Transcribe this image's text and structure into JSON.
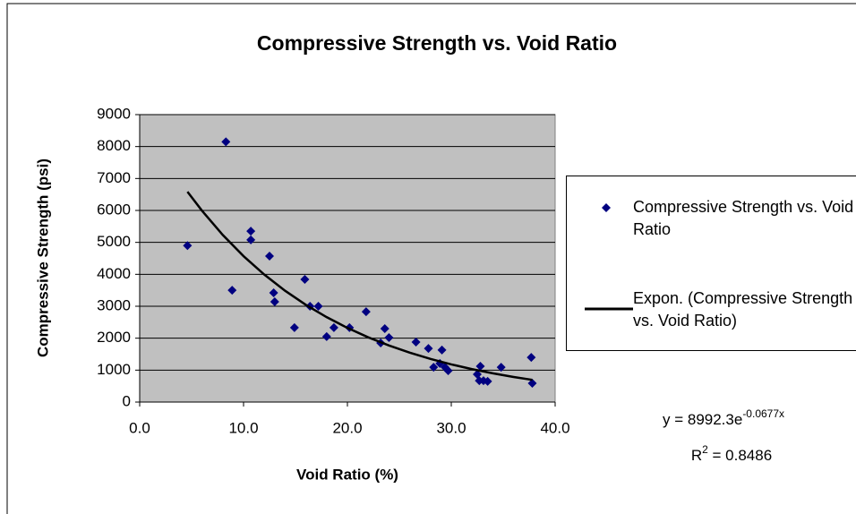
{
  "chart_data": {
    "type": "scatter",
    "title": "Compressive Strength vs. Void Ratio",
    "x_label": "Void Ratio (%)",
    "y_label": "Compressive Strength (psi)",
    "xlim": [
      0,
      40
    ],
    "ylim": [
      0,
      9000
    ],
    "xticks": [
      {
        "value": 0,
        "label": "0.0"
      },
      {
        "value": 10,
        "label": "10.0"
      },
      {
        "value": 20,
        "label": "20.0"
      },
      {
        "value": 30,
        "label": "30.0"
      },
      {
        "value": 40,
        "label": "40.0"
      }
    ],
    "yticks": [
      0,
      1000,
      2000,
      3000,
      4000,
      5000,
      6000,
      7000,
      8000,
      9000
    ],
    "grid": true,
    "plot_background": "#c0c0c0",
    "series": [
      {
        "name": "Compressive Strength vs. Void Ratio",
        "color": "#000080",
        "marker": "diamond",
        "x": [
          4.6,
          8.3,
          8.9,
          10.7,
          10.7,
          12.5,
          12.9,
          13.0,
          14.9,
          15.9,
          16.4,
          17.2,
          18.0,
          18.7,
          20.2,
          21.8,
          23.2,
          23.6,
          24.0,
          26.6,
          27.8,
          28.3,
          28.9,
          29.1,
          29.4,
          29.7,
          32.5,
          32.8,
          32.7,
          33.1,
          33.5,
          34.8,
          37.7,
          37.8
        ],
        "values": [
          4900,
          8150,
          3500,
          5350,
          5080,
          4570,
          3420,
          3140,
          2330,
          3840,
          3000,
          3000,
          2050,
          2330,
          2330,
          2830,
          1850,
          2300,
          2020,
          1880,
          1680,
          1090,
          1210,
          1630,
          1090,
          980,
          870,
          1120,
          670,
          670,
          650,
          1090,
          1400,
          590
        ]
      },
      {
        "name": "Expon. (Compressive Strength vs. Void Ratio)",
        "color": "#000000",
        "marker": "line",
        "x": [
          4.6,
          6,
          8,
          10,
          12,
          14,
          16,
          18,
          20,
          22,
          24,
          26,
          28,
          30,
          32,
          34,
          36,
          37.8
        ],
        "values": [
          6586,
          5991,
          5232,
          4569,
          3991,
          3485,
          3044,
          2659,
          2322,
          2028,
          1771,
          1547,
          1351,
          1180,
          1031,
          900,
          786,
          696
        ]
      }
    ],
    "equation": {
      "base": "y = 8992.3e",
      "exponent": "-0.0677x"
    },
    "r_squared": {
      "prefix": "R",
      "power": "2",
      "rest": " = 0.8486"
    }
  }
}
